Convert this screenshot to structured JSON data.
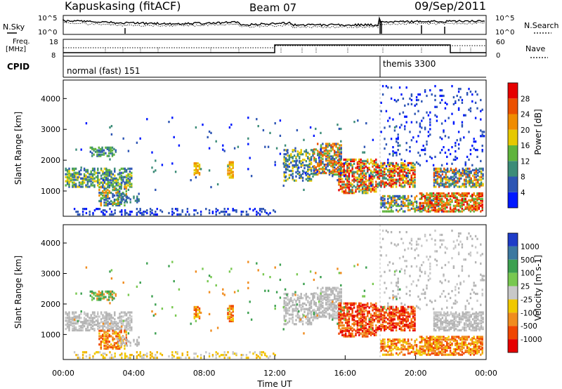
{
  "header": {
    "station": "Kapuskasing (fitACF)",
    "beam": "Beam 07",
    "date": "09/Sep/2011"
  },
  "top_panels": {
    "nsky_label": "N.Sky",
    "nsearch_label": "N.Search",
    "freq_label_1": "Freq.",
    "freq_label_2": "[MHz]",
    "nave_label": "Nave",
    "cpid_label": "CPID",
    "noise_ticks_left": [
      "10^5",
      "10^0"
    ],
    "noise_ticks_right": [
      "10^5",
      "10^0"
    ],
    "freq_ticks": [
      "18",
      "8"
    ],
    "nave_ticks": [
      "60",
      "0"
    ],
    "cpid_modes": [
      "normal (fast) 151",
      "themis 3300"
    ]
  },
  "chart_data": [
    {
      "type": "heatmap",
      "title": "",
      "ylabel": "Slant Range [km]",
      "xlabel": "",
      "ylim": [
        180,
        4600
      ],
      "yticks": [
        "1000",
        "2000",
        "3000",
        "4000"
      ],
      "colorbar_label": "Power [dB]",
      "colorbar_ticks": [
        "4",
        "8",
        "12",
        "16",
        "20",
        "24",
        "28"
      ],
      "colorbar_colors": [
        "#0018ff",
        "#2d55b4",
        "#3c8c78",
        "#5fb43c",
        "#e6c800",
        "#f08c00",
        "#eb5000",
        "#e60000"
      ]
    },
    {
      "type": "heatmap",
      "title": "",
      "ylabel": "Slant Range [km]",
      "xlabel": "Time UT",
      "ylim": [
        180,
        4600
      ],
      "yticks": [
        "1000",
        "2000",
        "3000",
        "4000"
      ],
      "xticks": [
        "00:00",
        "04:00",
        "08:00",
        "12:00",
        "16:00",
        "20:00",
        "00:00"
      ],
      "colorbar_label": "Velocity [m s-1]",
      "colorbar_ticks": [
        "1000",
        "500",
        "100",
        "25",
        "-25",
        "-100",
        "-500",
        "-1000"
      ],
      "colorbar_colors": [
        "#1e3cc8",
        "#3c78a0",
        "#3ca050",
        "#78c850",
        "#c8c8c8",
        "#f0c800",
        "#f08c1e",
        "#f04600",
        "#e60000"
      ],
      "ground_scatter_color": "#b4b4b4"
    }
  ]
}
